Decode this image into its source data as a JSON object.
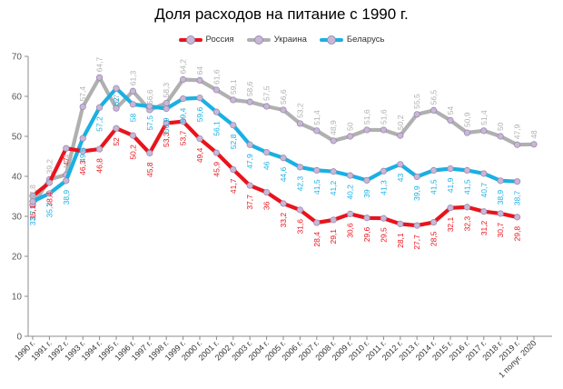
{
  "chart_data": {
    "type": "line",
    "title": "Доля расходов на питание с 1990 г.",
    "xlabel": "",
    "ylabel": "",
    "ylim": [
      0,
      70
    ],
    "yticks": [
      0,
      10,
      20,
      30,
      40,
      50,
      60,
      70
    ],
    "grid": false,
    "legend_position": "top",
    "categories": [
      "1990 г.",
      "1991 г.",
      "1992 г.",
      "1993 г.",
      "1994 г.",
      "1995 г.",
      "1996 г.",
      "1997 г.",
      "1998 г.",
      "1999 г.",
      "2000 г.",
      "2001 г.",
      "2002 г.",
      "2003 г.",
      "2004 г.",
      "2005 г.",
      "2006 г.",
      "2007 г.",
      "2008 г.",
      "2009 г.",
      "2010 г.",
      "2011 г.",
      "2012 г.",
      "2013 г.",
      "2014 г.",
      "2015 г.",
      "2016 г.",
      "2017 г.",
      "2018 г.",
      "2019 г.",
      "1 полуг. 2020"
    ],
    "series": [
      {
        "name": "Россия",
        "color": "#e8141c",
        "values": [
          35.1,
          38.4,
          47,
          46.3,
          46.8,
          52,
          50.2,
          45.8,
          53.3,
          53.7,
          49.4,
          45.9,
          41.7,
          37.7,
          36,
          33.2,
          31.6,
          28.4,
          29.1,
          30.6,
          29.6,
          29.5,
          28.1,
          27.7,
          28.5,
          32.1,
          32.3,
          31.2,
          30.7,
          29.8,
          null
        ],
        "labels": [
          "35,1",
          "38,4",
          "47",
          "46,3",
          "46,8",
          "52",
          "50,2",
          "45,8",
          "53,3",
          "53,7",
          "49,4",
          "45,9",
          "41,7",
          "37,7",
          "36",
          "33,2",
          "31,6",
          "28,4",
          "29,1",
          "30,6",
          "29,6",
          "29,5",
          "28,1",
          "27,7",
          "28,5",
          "32,1",
          "32,3",
          "31,2",
          "30,7",
          "29,8",
          ""
        ]
      },
      {
        "name": "Украина",
        "color": "#b0b0b0",
        "values": [
          32.8,
          39.2,
          40.4,
          57.4,
          64.7,
          57,
          61.3,
          56.6,
          58.3,
          64.2,
          64,
          61.6,
          59.1,
          58.6,
          57.5,
          56.6,
          53.2,
          51.4,
          48.9,
          50,
          51.6,
          51.6,
          50.2,
          55.5,
          56.5,
          54,
          50.9,
          51.4,
          50,
          47.9,
          48
        ],
        "labels": [
          "32,8",
          "39,2",
          "40,4",
          "57,4",
          "64,7",
          "57",
          "61,3",
          "56,6",
          "58,3",
          "64,2",
          "64",
          "61,6",
          "59,1",
          "58,6",
          "57,5",
          "56,6",
          "53,2",
          "51,4",
          "48,9",
          "50",
          "51,6",
          "51,6",
          "50,2",
          "55,5",
          "56,5",
          "54",
          "50,9",
          "51,4",
          "50",
          "47,9",
          "48"
        ]
      },
      {
        "name": "Беларусь",
        "color": "#1ab0e3",
        "values": [
          33.7,
          35.7,
          38.9,
          49.5,
          57.2,
          62,
          58,
          57.5,
          56.9,
          59.4,
          59.6,
          56.1,
          52.8,
          47.9,
          46,
          44.6,
          42.3,
          41.5,
          41.2,
          40.2,
          39,
          41.3,
          43,
          39.9,
          41.5,
          41.9,
          41.5,
          40.7,
          38.9,
          38.7,
          null
        ],
        "labels": [
          "33,7",
          "35,7",
          "38,9",
          "49,5",
          "57,2",
          "62",
          "58",
          "57,5",
          "56,9",
          "59,4",
          "59,6",
          "56,1",
          "52,8",
          "47,9",
          "46",
          "44,6",
          "42,3",
          "41,5",
          "41,2",
          "40,2",
          "39",
          "41,3",
          "43",
          "39,9",
          "41,5",
          "41,9",
          "41,5",
          "40,7",
          "38,9",
          "38,7",
          ""
        ]
      }
    ]
  }
}
